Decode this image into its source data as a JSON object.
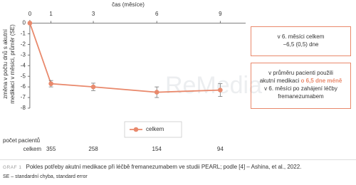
{
  "chart_data": {
    "type": "line",
    "xlabel": "čas (měsíce)",
    "ylabel": [
      "změna v počtu dnů s akutní",
      "medikací v měsíci, průměr (SE)"
    ],
    "x": [
      0,
      1,
      3,
      6,
      9
    ],
    "xlim": [
      -0.3,
      10.2
    ],
    "xticks": [
      0,
      1,
      3,
      6,
      9
    ],
    "ylim": [
      -8,
      0.3
    ],
    "yticks": [
      0,
      -1,
      -2,
      -3,
      -4,
      -5,
      -6,
      -7,
      -8
    ],
    "grid": false,
    "series": [
      {
        "name": "celkem",
        "color": "#e9896c",
        "values": [
          0,
          -5.7,
          -6.0,
          -6.5,
          -6.3
        ],
        "errors": [
          0,
          0.3,
          0.35,
          0.5,
          0.6
        ]
      }
    ],
    "legend": "bottom",
    "watermark": "ReMedia",
    "at_risk": {
      "title": "počet pacientů",
      "row_label": "celkem",
      "counts": [
        355,
        258,
        154,
        94
      ]
    },
    "annotations": [
      {
        "lines": [
          "v 6. měsíci celkem",
          "−6,5 (0,5) dne"
        ]
      },
      {
        "lines": [
          "v průměru pacienti použili",
          "akutní medikaci",
          "o 6,5 dne méně",
          "v 6. měsíci po zahájení léčby",
          "fremanezumabem"
        ]
      }
    ],
    "caption": {
      "label": "GRAF 1",
      "text": "Pokles potřeby akutní medikace při léčbě fremanezumabem ve studii PEARL; podle [4] – Ashina, et al., 2022.",
      "note": "SE – standardní chyba, standard error"
    }
  }
}
